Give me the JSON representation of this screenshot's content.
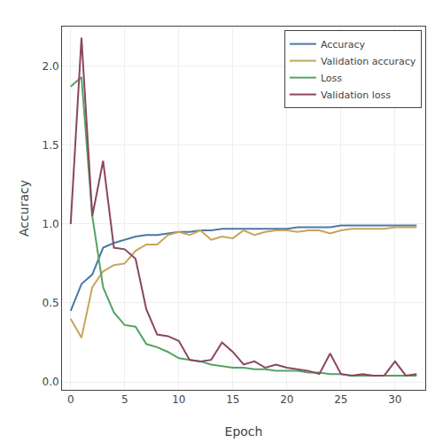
{
  "chart_data": {
    "type": "line",
    "xlabel": "Epoch",
    "ylabel": "Accuracy",
    "x": [
      0,
      1,
      2,
      3,
      4,
      5,
      6,
      7,
      8,
      9,
      10,
      11,
      12,
      13,
      14,
      15,
      16,
      17,
      18,
      19,
      20,
      21,
      22,
      23,
      24,
      25,
      26,
      27,
      28,
      29,
      30,
      31,
      32
    ],
    "series": [
      {
        "name": "Accuracy",
        "color": "#4c78a8",
        "values": [
          0.45,
          0.62,
          0.68,
          0.85,
          0.88,
          0.9,
          0.92,
          0.93,
          0.93,
          0.94,
          0.95,
          0.95,
          0.96,
          0.96,
          0.97,
          0.97,
          0.97,
          0.97,
          0.97,
          0.97,
          0.97,
          0.98,
          0.98,
          0.98,
          0.98,
          0.99,
          0.99,
          0.99,
          0.99,
          0.99,
          0.99,
          0.99,
          0.99
        ]
      },
      {
        "name": "Validation accuracy",
        "color": "#c8a45a",
        "values": [
          0.4,
          0.28,
          0.6,
          0.7,
          0.74,
          0.75,
          0.83,
          0.87,
          0.87,
          0.93,
          0.95,
          0.93,
          0.96,
          0.9,
          0.92,
          0.91,
          0.96,
          0.93,
          0.95,
          0.96,
          0.96,
          0.95,
          0.96,
          0.96,
          0.94,
          0.96,
          0.97,
          0.97,
          0.97,
          0.97,
          0.98,
          0.98,
          0.98
        ]
      },
      {
        "name": "Loss",
        "color": "#54a362",
        "values": [
          1.87,
          1.93,
          1.05,
          0.6,
          0.44,
          0.36,
          0.35,
          0.24,
          0.22,
          0.19,
          0.15,
          0.14,
          0.13,
          0.11,
          0.1,
          0.09,
          0.09,
          0.08,
          0.08,
          0.07,
          0.07,
          0.07,
          0.06,
          0.06,
          0.05,
          0.05,
          0.04,
          0.04,
          0.04,
          0.04,
          0.04,
          0.04,
          0.04
        ]
      },
      {
        "name": "Validation loss",
        "color": "#8b4560",
        "values": [
          1.0,
          2.18,
          1.05,
          1.4,
          0.85,
          0.84,
          0.78,
          0.46,
          0.3,
          0.29,
          0.26,
          0.14,
          0.13,
          0.14,
          0.25,
          0.19,
          0.11,
          0.13,
          0.09,
          0.11,
          0.09,
          0.08,
          0.07,
          0.05,
          0.18,
          0.05,
          0.04,
          0.05,
          0.04,
          0.04,
          0.13,
          0.04,
          0.05
        ]
      }
    ],
    "xlim": [
      -0.8,
      32.8
    ],
    "ylim": [
      -0.05,
      2.25
    ],
    "xticks": [
      0,
      5,
      10,
      15,
      20,
      25,
      30
    ],
    "yticks": [
      {
        "value": 0,
        "label": "0.0"
      },
      0.5,
      {
        "value": 1,
        "label": "1.0"
      },
      1.5,
      {
        "value": 2,
        "label": "2.0"
      }
    ],
    "grid": true,
    "legend": "upper right"
  }
}
